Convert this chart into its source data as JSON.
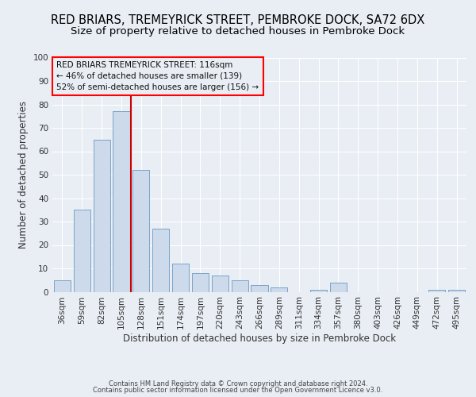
{
  "title1": "RED BRIARS, TREMEYRICK STREET, PEMBROKE DOCK, SA72 6DX",
  "title2": "Size of property relative to detached houses in Pembroke Dock",
  "xlabel": "Distribution of detached houses by size in Pembroke Dock",
  "ylabel": "Number of detached properties",
  "categories": [
    "36sqm",
    "59sqm",
    "82sqm",
    "105sqm",
    "128sqm",
    "151sqm",
    "174sqm",
    "197sqm",
    "220sqm",
    "243sqm",
    "266sqm",
    "289sqm",
    "311sqm",
    "334sqm",
    "357sqm",
    "380sqm",
    "403sqm",
    "426sqm",
    "449sqm",
    "472sqm",
    "495sqm"
  ],
  "values": [
    5,
    35,
    65,
    77,
    52,
    27,
    12,
    8,
    7,
    5,
    3,
    2,
    0,
    1,
    4,
    0,
    0,
    0,
    0,
    1,
    1
  ],
  "bar_color": "#ccdaeb",
  "bar_edge_color": "#7ba3c8",
  "annotation_line1": "RED BRIARS TREMEYRICK STREET: 116sqm",
  "annotation_line2": "← 46% of detached houses are smaller (139)",
  "annotation_line3": "52% of semi-detached houses are larger (156) →",
  "ylim": [
    0,
    100
  ],
  "footnote1": "Contains HM Land Registry data © Crown copyright and database right 2024.",
  "footnote2": "Contains public sector information licensed under the Open Government Licence v3.0.",
  "background_color": "#e8eef4",
  "grid_color": "#ffffff",
  "title_fontsize": 10.5,
  "subtitle_fontsize": 9.5,
  "axis_label_fontsize": 8.5,
  "tick_fontsize": 7.5,
  "footnote_fontsize": 6.0,
  "annotation_fontsize": 7.5
}
